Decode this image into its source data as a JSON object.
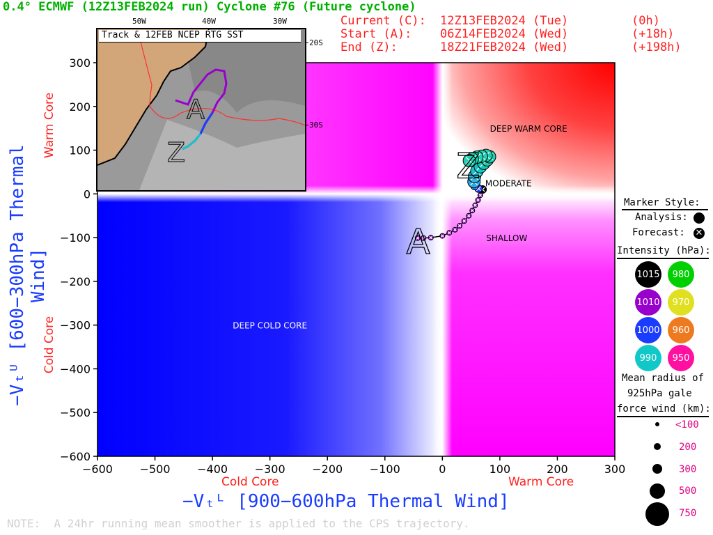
{
  "header": {
    "title": "0.4° ECMWF (12Z13FEB2024 run) Cyclone #76 (Future cyclone)",
    "current_label": "Current (C):",
    "current_time": "12Z13FEB2024 (Tue)",
    "current_offset": "(0h)",
    "start_label": "Start (A):",
    "start_time": "06Z14FEB2024 (Wed)",
    "start_offset": "(+18h)",
    "end_label": "End (Z):",
    "end_time": "18Z21FEB2024 (Wed)",
    "end_offset": "(+198h)"
  },
  "note": "NOTE:  A 24hr running mean smoother is applied to the CPS trajectory.",
  "legend": {
    "marker_style_title": "Marker Style:",
    "analysis_label": "Analysis:",
    "forecast_label": "Forecast:",
    "intensity_title": "Intensity (hPa):",
    "intensity_swatches": [
      {
        "label": "1015",
        "color": "#000000"
      },
      {
        "label": "980",
        "color": "#00d000"
      },
      {
        "label": "1010",
        "color": "#9900cc"
      },
      {
        "label": "970",
        "color": "#e0e020"
      },
      {
        "label": "1000",
        "color": "#1a3cff"
      },
      {
        "label": "960",
        "color": "#ee7a20"
      },
      {
        "label": "990",
        "color": "#10c8c8"
      },
      {
        "label": "950",
        "color": "#ff10a0"
      }
    ],
    "radius_title_1": "Mean radius of",
    "radius_title_2": "925hPa gale",
    "radius_title_3": "force wind (km):",
    "radius_labels": [
      "<100",
      "200",
      "300",
      "500",
      "750"
    ]
  },
  "inset": {
    "title": "Track & 12FEB NCEP RTG SST",
    "lon_labels": [
      "50W",
      "40W",
      "30W"
    ],
    "lat_labels": [
      "20S",
      "30S"
    ]
  },
  "chart_data": {
    "type": "scatter",
    "title": "",
    "xlabel": "−Vₜᴸ [900−600hPa Thermal Wind]",
    "ylabel": "−Vₜᵁ [600−300hPa Thermal Wind]",
    "x_side_labels": {
      "left": "Cold Core",
      "right": "Warm Core"
    },
    "y_side_labels": {
      "top": "Warm Core",
      "bottom": "Cold Core"
    },
    "xlim": [
      -600,
      300
    ],
    "ylim": [
      -600,
      300
    ],
    "x_ticks": [
      -600,
      -500,
      -400,
      -300,
      -200,
      -100,
      0,
      100,
      200,
      300
    ],
    "y_ticks": [
      -600,
      -500,
      -400,
      -300,
      -200,
      -100,
      0,
      100,
      200,
      300
    ],
    "region_labels": [
      {
        "text": "DEEP WARM CORE",
        "x": 150,
        "y": 150
      },
      {
        "text": "MODERATE",
        "x": 115,
        "y": 25
      },
      {
        "text": "SHALLOW",
        "x": 112,
        "y": -100
      },
      {
        "text": "DEEP COLD CORE",
        "x": -300,
        "y": -300
      }
    ],
    "start_marker": {
      "text": "A",
      "x": -42,
      "y": -102
    },
    "end_marker": {
      "text": "Z",
      "x": 45,
      "y": 75
    },
    "series": [
      {
        "points": [
          {
            "x": -43,
            "y": -101,
            "color": "#9900cc"
          },
          {
            "x": -33,
            "y": -101,
            "color": "#9900cc"
          },
          {
            "x": -20,
            "y": -100,
            "color": "#9900cc"
          },
          {
            "x": 0,
            "y": -96,
            "color": "#9900cc"
          },
          {
            "x": 12,
            "y": -89,
            "color": "#9900cc"
          },
          {
            "x": 22,
            "y": -82,
            "color": "#9900cc"
          },
          {
            "x": 30,
            "y": -73,
            "color": "#9900cc"
          },
          {
            "x": 38,
            "y": -62,
            "color": "#9900cc"
          },
          {
            "x": 46,
            "y": -50,
            "color": "#9900cc"
          },
          {
            "x": 52,
            "y": -38,
            "color": "#9900cc"
          },
          {
            "x": 57,
            "y": -26,
            "color": "#9900cc"
          },
          {
            "x": 62,
            "y": -14,
            "color": "#9900cc"
          },
          {
            "x": 66,
            "y": -3,
            "color": "#9900cc"
          },
          {
            "x": 70,
            "y": 10,
            "color": "#000000"
          },
          {
            "x": 63,
            "y": 12,
            "color": "#1a3cff"
          },
          {
            "x": 56,
            "y": 18,
            "color": "#2a8cff"
          },
          {
            "x": 55,
            "y": 28,
            "color": "#2aa8e8"
          },
          {
            "x": 56,
            "y": 40,
            "color": "#2ab8e0"
          },
          {
            "x": 60,
            "y": 52,
            "color": "#18c0d0"
          },
          {
            "x": 66,
            "y": 62,
            "color": "#10c8c8"
          },
          {
            "x": 72,
            "y": 70,
            "color": "#10c8b8"
          },
          {
            "x": 78,
            "y": 78,
            "color": "#20d0b0"
          },
          {
            "x": 82,
            "y": 85,
            "color": "#20d0b0"
          },
          {
            "x": 76,
            "y": 88,
            "color": "#20d0b0"
          },
          {
            "x": 68,
            "y": 86,
            "color": "#20d0b0"
          },
          {
            "x": 60,
            "y": 84,
            "color": "#20d0b0"
          },
          {
            "x": 52,
            "y": 80,
            "color": "#20d0b0"
          },
          {
            "x": 47,
            "y": 76,
            "color": "#20d0b0"
          }
        ]
      }
    ]
  }
}
